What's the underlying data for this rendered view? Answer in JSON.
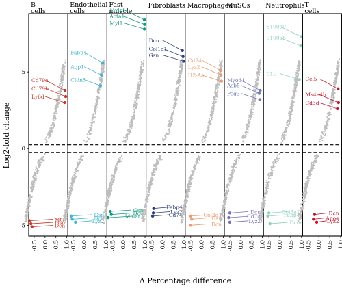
{
  "chart_data": {
    "type": "scatter",
    "xlabel": "Δ Percentage difference",
    "ylabel": "Log2-fold change",
    "xlim": [
      -0.75,
      1.05
    ],
    "ylim": [
      -5.7,
      8.8
    ],
    "x_ticks": [
      "-0.5",
      "0.0",
      "0.5",
      "1.0"
    ],
    "y_ticks": [
      "-5",
      "0",
      "5"
    ],
    "threshold_lines": [
      0.25,
      -0.25
    ],
    "point_color": "#bdbdbd",
    "panels": [
      {
        "name": "B cells",
        "color": "#c0392b",
        "up": [
          {
            "gene": "Cd79a",
            "x": 0.92,
            "y": 3.8
          },
          {
            "gene": "Cd79b",
            "x": 0.95,
            "y": 3.4
          },
          {
            "gene": "Ly6d",
            "x": 0.9,
            "y": 3.0
          }
        ],
        "down": [
          {
            "gene": "Mt1",
            "x": -0.72,
            "y": -4.7
          },
          {
            "gene": "Gsn",
            "x": -0.65,
            "y": -4.9
          },
          {
            "gene": "Dcn",
            "x": -0.6,
            "y": -5.1
          }
        ]
      },
      {
        "name": "Endothelial cells",
        "color": "#44b3c8",
        "up": [
          {
            "gene": "Fabp4",
            "x": 0.85,
            "y": 5.6
          },
          {
            "gene": "Aqp1",
            "x": 0.8,
            "y": 4.8
          },
          {
            "gene": "Cldn5",
            "x": 0.75,
            "y": 4.1
          }
        ],
        "down": [
          {
            "gene": "Gsn",
            "x": -0.6,
            "y": -4.4
          },
          {
            "gene": "Dcn",
            "x": -0.55,
            "y": -4.6
          },
          {
            "gene": "Lyz2",
            "x": -0.4,
            "y": -4.8
          }
        ]
      },
      {
        "name": "Fast muscle",
        "color": "#12977f",
        "up": [
          {
            "gene": "Mylpf",
            "x": 0.97,
            "y": 8.4
          },
          {
            "gene": "Acta1",
            "x": 0.98,
            "y": 8.1
          },
          {
            "gene": "Myl1",
            "x": 0.97,
            "y": 7.8
          }
        ],
        "down": [
          {
            "gene": "Gsn",
            "x": -0.6,
            "y": -4.1
          },
          {
            "gene": "Dcn",
            "x": -0.55,
            "y": -4.3
          },
          {
            "gene": "Malat1",
            "x": -0.7,
            "y": -4.5
          }
        ]
      },
      {
        "name": "Fibroblasts",
        "color": "#2e3d74",
        "up": [
          {
            "gene": "Dcn",
            "x": 0.92,
            "y": 6.4
          },
          {
            "gene": "Col1a1",
            "x": 0.95,
            "y": 6.0
          },
          {
            "gene": "Gsn",
            "x": 0.98,
            "y": 5.7
          }
        ],
        "down": [
          {
            "gene": "Fabp4",
            "x": -0.4,
            "y": -3.9
          },
          {
            "gene": "Lyz2",
            "x": -0.42,
            "y": -4.2
          },
          {
            "gene": "Cd74",
            "x": -0.45,
            "y": -4.4
          }
        ]
      },
      {
        "name": "Macrophages",
        "color": "#e99b73",
        "up": [
          {
            "gene": "Cd74",
            "x": 0.88,
            "y": 5.1
          },
          {
            "gene": "Lyz2",
            "x": 0.9,
            "y": 4.8
          },
          {
            "gene": "H2-Aa",
            "x": 0.92,
            "y": 4.4
          }
        ],
        "down": [
          {
            "gene": "Col3a1",
            "x": -0.5,
            "y": -4.4
          },
          {
            "gene": "Gsn",
            "x": -0.45,
            "y": -4.6
          },
          {
            "gene": "Dcn",
            "x": -0.5,
            "y": -5.0
          }
        ]
      },
      {
        "name": "MuSCs",
        "color": "#7178b5",
        "up": [
          {
            "gene": "Myod1",
            "x": 0.9,
            "y": 3.8
          },
          {
            "gene": "Asb5",
            "x": 0.85,
            "y": 3.6
          },
          {
            "gene": "Peg3",
            "x": 0.88,
            "y": 3.2
          }
        ],
        "down": [
          {
            "gene": "Dcn",
            "x": -0.5,
            "y": -4.2
          },
          {
            "gene": "Cd74",
            "x": -0.55,
            "y": -4.5
          },
          {
            "gene": "Lyz2",
            "x": -0.5,
            "y": -4.8
          }
        ]
      },
      {
        "name": "Neutrophils",
        "color": "#8ed1bb",
        "up": [
          {
            "gene": "S100a9",
            "x": 0.98,
            "y": 7.3
          },
          {
            "gene": "S100a8",
            "x": 0.97,
            "y": 6.7
          },
          {
            "gene": "Il1b",
            "x": 0.9,
            "y": 4.5
          }
        ],
        "down": [
          {
            "gene": "Col3a1",
            "x": -0.5,
            "y": -4.2
          },
          {
            "gene": "Fabp4",
            "x": -0.55,
            "y": -4.4
          },
          {
            "gene": "Dcn",
            "x": -0.45,
            "y": -4.9
          }
        ]
      },
      {
        "name": "T cells",
        "color": "#c1152b",
        "up": [
          {
            "gene": "Ccl5",
            "x": 0.88,
            "y": 3.9
          },
          {
            "gene": "Ms4a4b",
            "x": 0.9,
            "y": 3.0
          },
          {
            "gene": "Cd3d",
            "x": 0.85,
            "y": 2.6
          }
        ],
        "down": [
          {
            "gene": "Dcn",
            "x": -0.2,
            "y": -4.3
          },
          {
            "gene": "Apoe",
            "x": -0.25,
            "y": -4.6
          },
          {
            "gene": "Lyz2",
            "x": -0.1,
            "y": -4.8
          }
        ]
      }
    ]
  }
}
